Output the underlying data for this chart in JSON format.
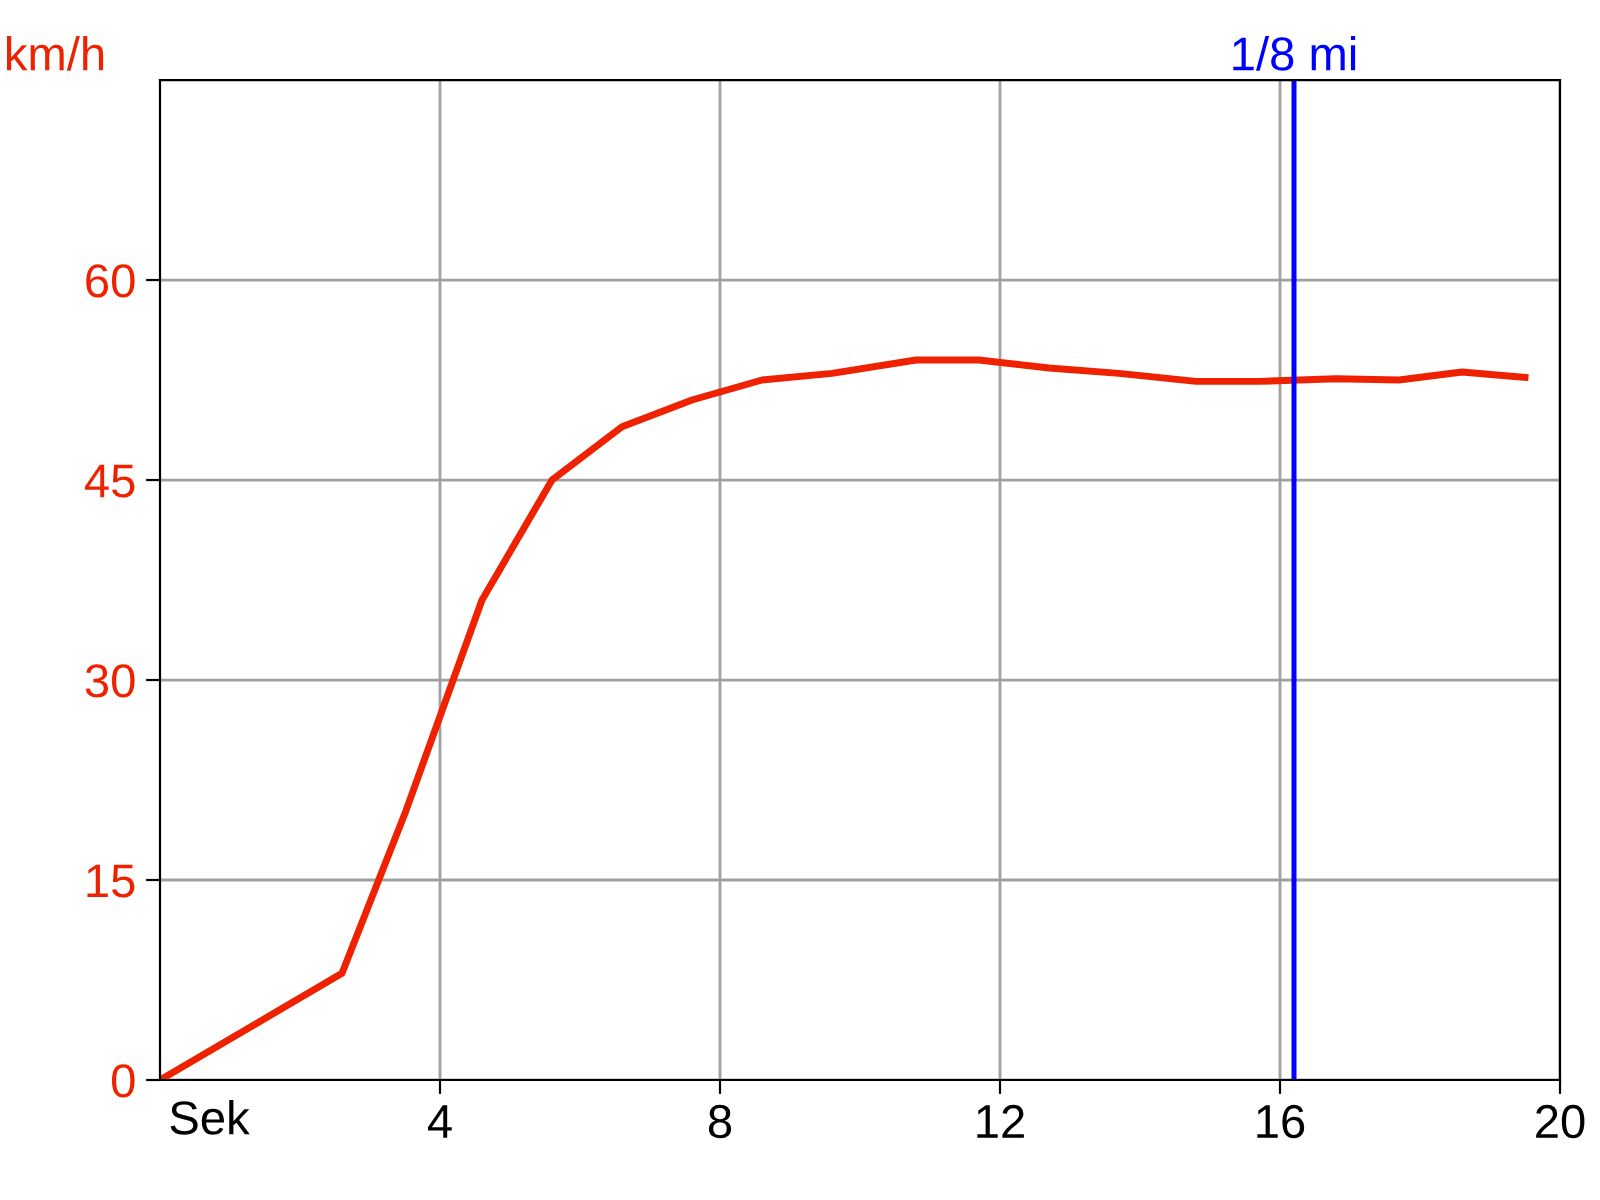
{
  "chart_data": {
    "type": "line",
    "xlabel": "Sek",
    "ylabel": "km/h",
    "x": [
      0,
      2.6,
      3.5,
      4.6,
      5.6,
      6.6,
      7.6,
      8.6,
      9.6,
      10.8,
      11.7,
      12.7,
      13.7,
      14.8,
      15.7,
      16.8,
      17.7,
      18.6,
      19.5
    ],
    "series": [
      {
        "color": "#ee2200",
        "values": [
          0,
          8,
          20,
          36,
          45,
          49,
          51,
          52.5,
          53,
          54,
          54,
          53.4,
          53,
          52.4,
          52.4,
          52.6,
          52.5,
          53.1,
          52.7
        ]
      }
    ],
    "xlim": [
      0,
      20
    ],
    "xticks": [
      4,
      8,
      12,
      16,
      20
    ],
    "ylim": [
      0,
      75
    ],
    "yticks": [
      0,
      15,
      30,
      45,
      60
    ],
    "ref_lines": [
      {
        "axis": "x",
        "value": 16.2,
        "label": "1/8 mi",
        "color": "#0000ff"
      }
    ],
    "grid": true,
    "legend": false
  }
}
